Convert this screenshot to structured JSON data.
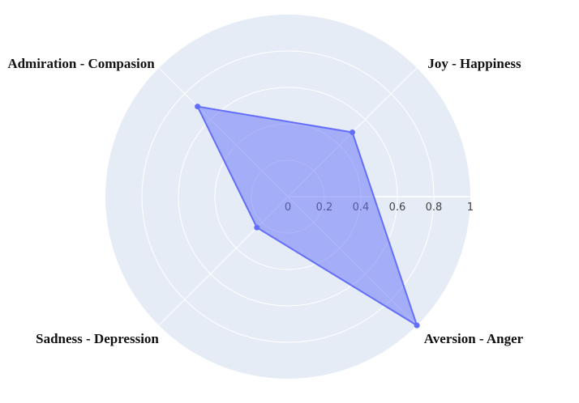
{
  "chart_data": {
    "type": "radar",
    "title": "",
    "axes": [
      "Joy - Happiness",
      "Aversion - Anger",
      "Sadness - Depression",
      "Admiration - Compasion"
    ],
    "axis_angles_deg": [
      45,
      -45,
      -135,
      135
    ],
    "values": [
      0.5,
      1.0,
      0.24,
      0.7
    ],
    "radial_range": [
      0,
      1
    ],
    "radial_ticks": [
      0,
      0.2,
      0.4,
      0.6,
      0.8,
      1
    ],
    "radial_tick_labels": [
      "0",
      "0.2",
      "0.4",
      "0.6",
      "0.8",
      "1"
    ],
    "grid": true,
    "colors": {
      "background": "#e5ecf6",
      "grid": "#ffffff",
      "fill": "#636efa",
      "line": "#636efa"
    }
  }
}
